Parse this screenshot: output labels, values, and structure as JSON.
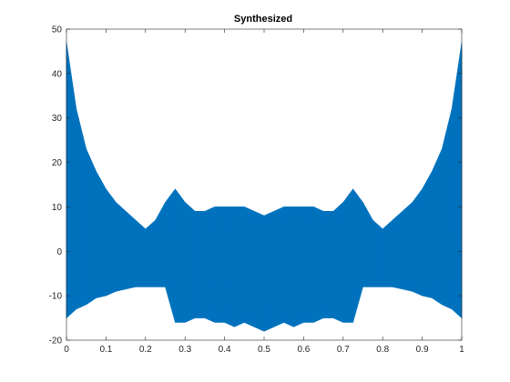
{
  "chart_data": {
    "type": "line",
    "title": "Synthesized",
    "xlabel": "",
    "ylabel": "",
    "xlim": [
      0,
      1
    ],
    "ylim": [
      -20,
      50
    ],
    "x_ticks": [
      0,
      0.1,
      0.2,
      0.3,
      0.4,
      0.5,
      0.6,
      0.7,
      0.8,
      0.9,
      1
    ],
    "x_tick_labels": [
      "0",
      "0.1",
      "0.2",
      "0.3",
      "0.4",
      "0.5",
      "0.6",
      "0.7",
      "0.8",
      "0.9",
      "1"
    ],
    "y_ticks": [
      -20,
      -10,
      0,
      10,
      20,
      30,
      40,
      50
    ],
    "y_tick_labels": [
      "-20",
      "-10",
      "0",
      "10",
      "20",
      "30",
      "40",
      "50"
    ],
    "grid": false,
    "legend": "none",
    "series_color": "#0072BD",
    "series": [
      {
        "x": [
          0,
          0.025,
          0.05,
          0.075,
          0.1,
          0.125,
          0.15,
          0.175,
          0.2,
          0.225,
          0.25,
          0.275,
          0.3,
          0.325,
          0.35,
          0.375,
          0.4,
          0.425,
          0.45,
          0.475,
          0.5,
          0.525,
          0.55,
          0.575,
          0.6,
          0.625,
          0.65,
          0.675,
          0.7,
          0.725,
          0.75,
          0.775,
          0.8,
          0.825,
          0.85,
          0.875,
          0.9,
          0.925,
          0.95,
          0.975,
          1
        ],
        "upper": [
          47,
          32,
          23,
          18,
          14,
          11,
          9,
          7,
          5,
          7,
          11,
          14,
          11,
          9,
          9,
          10,
          10,
          10,
          10,
          9,
          8,
          9,
          10,
          10,
          10,
          10,
          9,
          9,
          11,
          14,
          11,
          7,
          5,
          7,
          9,
          11,
          14,
          18,
          23,
          32,
          47
        ],
        "lower": [
          -15,
          -13,
          -12,
          -10.5,
          -10,
          -9,
          -8.5,
          -8,
          -8,
          -8,
          -8,
          -16,
          -16,
          -15,
          -15,
          -16,
          -16,
          -17,
          -16,
          -17,
          -18,
          -17,
          -16,
          -17,
          -16,
          -16,
          -15,
          -15,
          -16,
          -16,
          -8,
          -8,
          -8,
          -8,
          -8.5,
          -9,
          -10,
          -10.5,
          -12,
          -13,
          -15
        ]
      }
    ]
  }
}
